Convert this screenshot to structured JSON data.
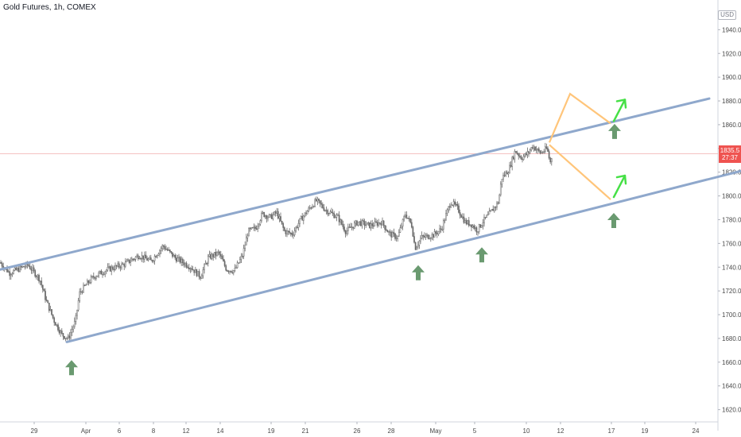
{
  "header": {
    "title": "Gold Futures, 1h, COMEX",
    "currency": "USD"
  },
  "price_tag": {
    "price": "1835.5",
    "countdown": "27:37"
  },
  "colors": {
    "channel": "#8fa8cc",
    "projection": "#ffc57a",
    "arrow_dark": "#6a9a70",
    "arrow_bright": "#46e046",
    "candle": "#6b6b6b",
    "price_line": "#ef9a9a"
  },
  "chart_data": {
    "type": "candlestick",
    "title": "Gold Futures, 1h, COMEX",
    "ylim": [
      1605,
      1965
    ],
    "yticks": [
      1620,
      1640,
      1660,
      1680,
      1700,
      1720,
      1740,
      1760,
      1780,
      1800,
      1820,
      1840,
      1860,
      1880,
      1900,
      1920,
      1940
    ],
    "x_tick_labels": [
      "29",
      "Apr",
      "6",
      "8",
      "12",
      "14",
      "19",
      "21",
      "26",
      "28",
      "May",
      "5",
      "10",
      "12",
      "17",
      "19",
      "24"
    ],
    "current_price": 1835.5,
    "price_path": [
      {
        "x": 0,
        "y": 1744
      },
      {
        "x": 12,
        "y": 1735
      },
      {
        "x": 35,
        "y": 1742
      },
      {
        "x": 50,
        "y": 1730
      },
      {
        "x": 58,
        "y": 1712
      },
      {
        "x": 68,
        "y": 1695
      },
      {
        "x": 78,
        "y": 1683
      },
      {
        "x": 86,
        "y": 1680
      },
      {
        "x": 95,
        "y": 1695
      },
      {
        "x": 100,
        "y": 1718
      },
      {
        "x": 108,
        "y": 1725
      },
      {
        "x": 118,
        "y": 1732
      },
      {
        "x": 135,
        "y": 1738
      },
      {
        "x": 155,
        "y": 1742
      },
      {
        "x": 175,
        "y": 1750
      },
      {
        "x": 190,
        "y": 1745
      },
      {
        "x": 205,
        "y": 1758
      },
      {
        "x": 220,
        "y": 1748
      },
      {
        "x": 240,
        "y": 1740
      },
      {
        "x": 252,
        "y": 1732
      },
      {
        "x": 262,
        "y": 1748
      },
      {
        "x": 275,
        "y": 1752
      },
      {
        "x": 285,
        "y": 1738
      },
      {
        "x": 295,
        "y": 1737
      },
      {
        "x": 305,
        "y": 1750
      },
      {
        "x": 312,
        "y": 1770
      },
      {
        "x": 322,
        "y": 1773
      },
      {
        "x": 330,
        "y": 1785
      },
      {
        "x": 340,
        "y": 1782
      },
      {
        "x": 348,
        "y": 1786
      },
      {
        "x": 358,
        "y": 1770
      },
      {
        "x": 368,
        "y": 1768
      },
      {
        "x": 378,
        "y": 1780
      },
      {
        "x": 390,
        "y": 1790
      },
      {
        "x": 398,
        "y": 1796
      },
      {
        "x": 410,
        "y": 1788
      },
      {
        "x": 425,
        "y": 1782
      },
      {
        "x": 435,
        "y": 1770
      },
      {
        "x": 450,
        "y": 1778
      },
      {
        "x": 465,
        "y": 1775
      },
      {
        "x": 480,
        "y": 1778
      },
      {
        "x": 490,
        "y": 1768
      },
      {
        "x": 500,
        "y": 1765
      },
      {
        "x": 510,
        "y": 1785
      },
      {
        "x": 518,
        "y": 1775
      },
      {
        "x": 522,
        "y": 1756
      },
      {
        "x": 530,
        "y": 1765
      },
      {
        "x": 545,
        "y": 1767
      },
      {
        "x": 555,
        "y": 1772
      },
      {
        "x": 560,
        "y": 1782
      },
      {
        "x": 567,
        "y": 1795
      },
      {
        "x": 575,
        "y": 1790
      },
      {
        "x": 585,
        "y": 1778
      },
      {
        "x": 593,
        "y": 1776
      },
      {
        "x": 600,
        "y": 1771
      },
      {
        "x": 607,
        "y": 1778
      },
      {
        "x": 617,
        "y": 1786
      },
      {
        "x": 627,
        "y": 1795
      },
      {
        "x": 631,
        "y": 1815
      },
      {
        "x": 640,
        "y": 1822
      },
      {
        "x": 648,
        "y": 1838
      },
      {
        "x": 656,
        "y": 1832
      },
      {
        "x": 664,
        "y": 1836
      },
      {
        "x": 670,
        "y": 1842
      },
      {
        "x": 680,
        "y": 1836
      },
      {
        "x": 688,
        "y": 1840
      },
      {
        "x": 692,
        "y": 1828
      },
      {
        "x": 695,
        "y": 1835.5
      }
    ],
    "annotations": {
      "channel_upper": [
        {
          "x": 0,
          "y": 1738
        },
        {
          "x": 892,
          "y": 1882
        }
      ],
      "channel_lower": [
        {
          "x": 84,
          "y": 1677
        },
        {
          "x": 932,
          "y": 1821
        }
      ],
      "projection": [
        {
          "x": 691,
          "y": 1845
        },
        {
          "x": 717,
          "y": 1886
        },
        {
          "x": 768,
          "y": 1861
        },
        {
          "x": 691,
          "y": 1843
        },
        {
          "x": 768,
          "y": 1797
        }
      ],
      "up_arrows_dark": [
        {
          "x": 90,
          "y": 1655
        },
        {
          "x": 526,
          "y": 1735
        },
        {
          "x": 606,
          "y": 1750
        },
        {
          "x": 773,
          "y": 1854
        },
        {
          "x": 772,
          "y": 1779
        }
      ],
      "up_arrows_bright": [
        {
          "x": 772,
          "y": 1863
        },
        {
          "x": 772,
          "y": 1799
        }
      ]
    }
  }
}
